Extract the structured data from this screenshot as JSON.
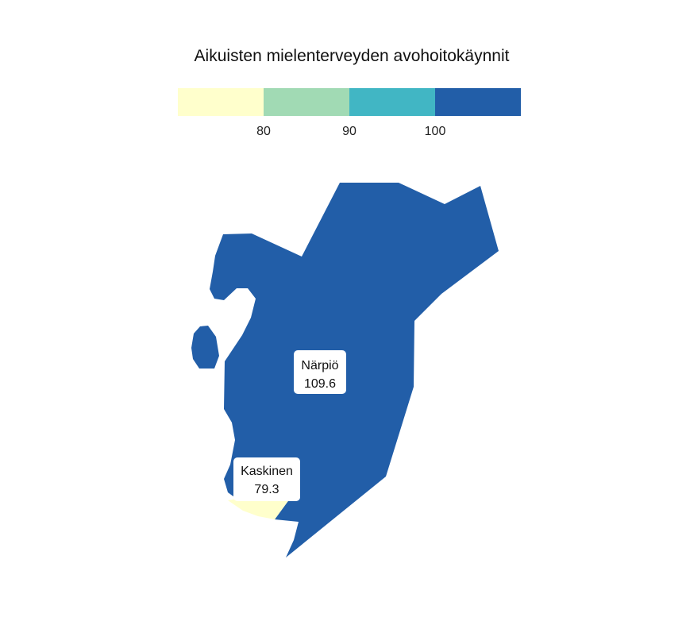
{
  "title": "Aikuisten mielenterveyden avohoitokäynnit",
  "legend": {
    "colors": [
      "#ffffcc",
      "#a1dab4",
      "#41b6c4",
      "#225ea8"
    ],
    "ticks": [
      "80",
      "90",
      "100"
    ]
  },
  "regions": [
    {
      "name": "Närpiö",
      "value": "109.6",
      "color": "#225ea8"
    },
    {
      "name": "Kaskinen",
      "value": "79.3",
      "color": "#ffffcc"
    }
  ]
}
